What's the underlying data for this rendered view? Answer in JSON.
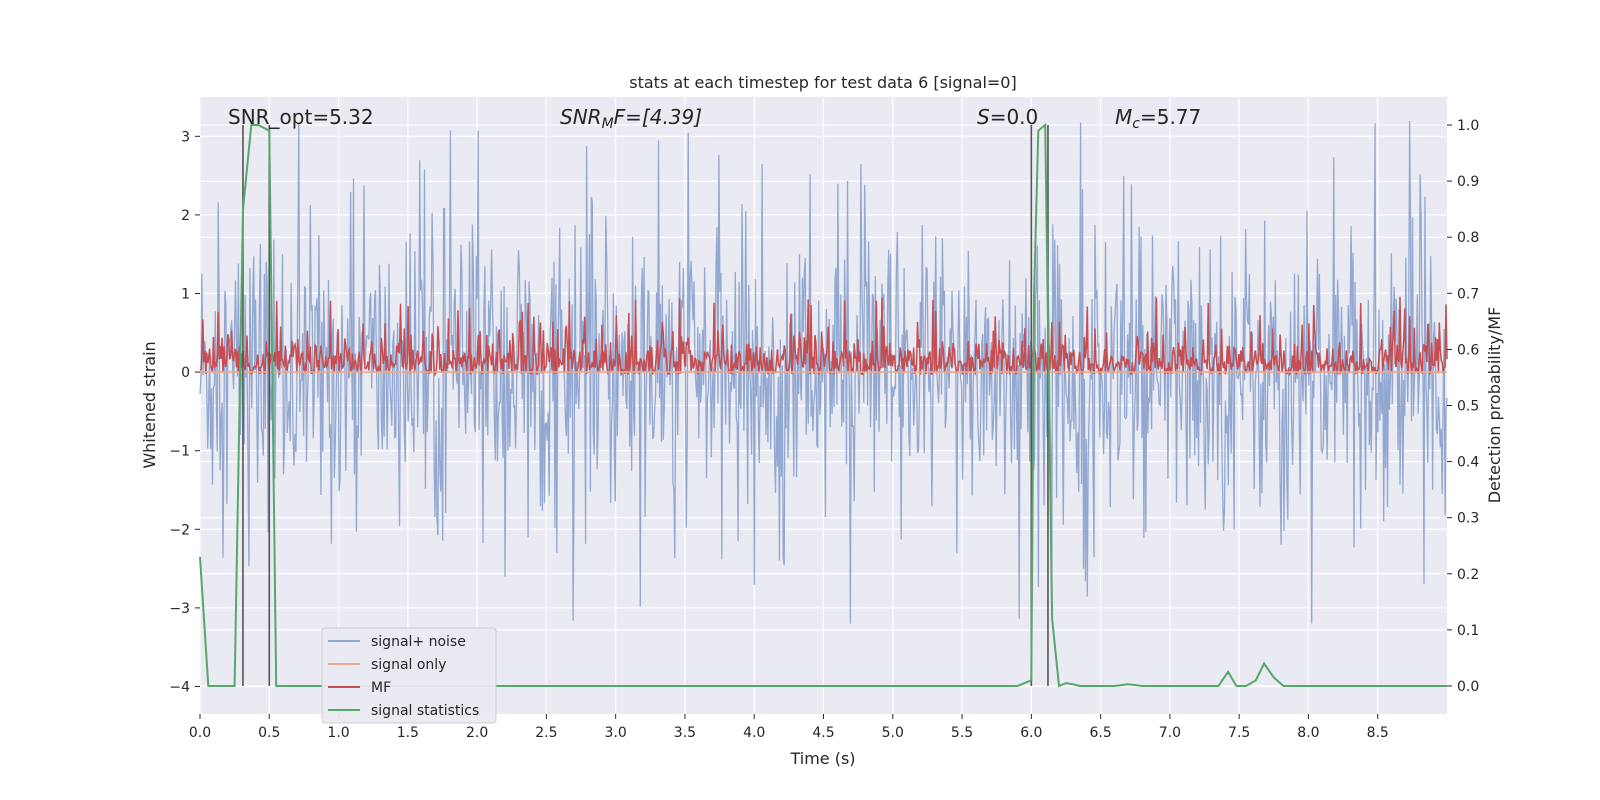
{
  "chart_data": {
    "type": "line",
    "title": "stats at each timestep for test data 6 [signal=0]",
    "xlabel": "Time (s)",
    "ylabel": "Whitened strain",
    "ylabel_right": "Detection probability/MF",
    "xlim": [
      0.0,
      9.0
    ],
    "ylim": [
      -4.35,
      3.5
    ],
    "ylim_right": [
      -0.05,
      1.05
    ],
    "xticks": [
      "0.0",
      "0.5",
      "1.0",
      "1.5",
      "2.0",
      "2.5",
      "3.0",
      "3.5",
      "4.0",
      "4.5",
      "5.0",
      "5.5",
      "6.0",
      "6.5",
      "7.0",
      "7.5",
      "8.0",
      "8.5"
    ],
    "xtick_values": [
      0.0,
      0.5,
      1.0,
      1.5,
      2.0,
      2.5,
      3.0,
      3.5,
      4.0,
      4.5,
      5.0,
      5.5,
      6.0,
      6.5,
      7.0,
      7.5,
      8.0,
      8.5
    ],
    "yticks": [
      "−4",
      "−3",
      "−2",
      "−1",
      "0",
      "1",
      "2",
      "3"
    ],
    "ytick_values": [
      -4,
      -3,
      -2,
      -1,
      0,
      1,
      2,
      3
    ],
    "yticks_right": [
      "0.0",
      "0.1",
      "0.2",
      "0.3",
      "0.4",
      "0.5",
      "0.6",
      "0.7",
      "0.8",
      "0.9",
      "1.0"
    ],
    "ytick_right_values": [
      0.0,
      0.1,
      0.2,
      0.3,
      0.4,
      0.5,
      0.6,
      0.7,
      0.8,
      0.9,
      1.0
    ],
    "grid": true,
    "legend_position": "lower-left",
    "annotations": {
      "snr_opt": "SNR_opt=5.32",
      "snr_mf_base": "SNR",
      "snr_mf_sub": "M",
      "snr_mf_tail": "F=[4.39]",
      "s_var": "S",
      "s_val": "=0.0",
      "mc_var": "M",
      "mc_sub": "c",
      "mc_val": "=5.77"
    },
    "vertical_lines_x": [
      0.31,
      0.5,
      6.0,
      6.12
    ],
    "series": [
      {
        "name": "signal+ noise",
        "color": "#92a8d1",
        "amplitude_typical": 1.0,
        "peak_max": 3.2,
        "peak_min": -3.2
      },
      {
        "name": "signal only",
        "color": "#e8a890",
        "values_constant": 0.0
      },
      {
        "name": "MF",
        "color": "#c44e52",
        "axis": "right",
        "baseline": 0.555,
        "peak_max": 0.7
      },
      {
        "name": "signal statistics",
        "color": "#55a868",
        "axis": "right",
        "x": [
          0.0,
          0.06,
          0.1,
          0.25,
          0.31,
          0.37,
          0.42,
          0.5,
          0.55,
          0.6,
          0.65,
          1.0,
          2.0,
          3.0,
          4.0,
          5.0,
          5.9,
          6.0,
          6.02,
          6.05,
          6.1,
          6.15,
          6.2,
          6.25,
          6.3,
          6.35,
          6.45,
          6.6,
          6.7,
          6.8,
          7.0,
          7.2,
          7.35,
          7.42,
          7.48,
          7.55,
          7.62,
          7.68,
          7.75,
          7.82,
          8.0,
          8.5,
          9.0
        ],
        "y": [
          0.23,
          0.0,
          0.0,
          0.0,
          0.85,
          1.0,
          1.0,
          0.99,
          0.0,
          0.0,
          0.0,
          0.0,
          0.0,
          0.0,
          0.0,
          0.0,
          0.0,
          0.01,
          0.7,
          0.99,
          1.0,
          0.12,
          0.0,
          0.005,
          0.003,
          0.0,
          0.0,
          0.0,
          0.003,
          0.0,
          0.0,
          0.0,
          0.0,
          0.025,
          0.0,
          0.0,
          0.01,
          0.04,
          0.015,
          0.0,
          0.0,
          0.0,
          0.0
        ]
      }
    ]
  }
}
